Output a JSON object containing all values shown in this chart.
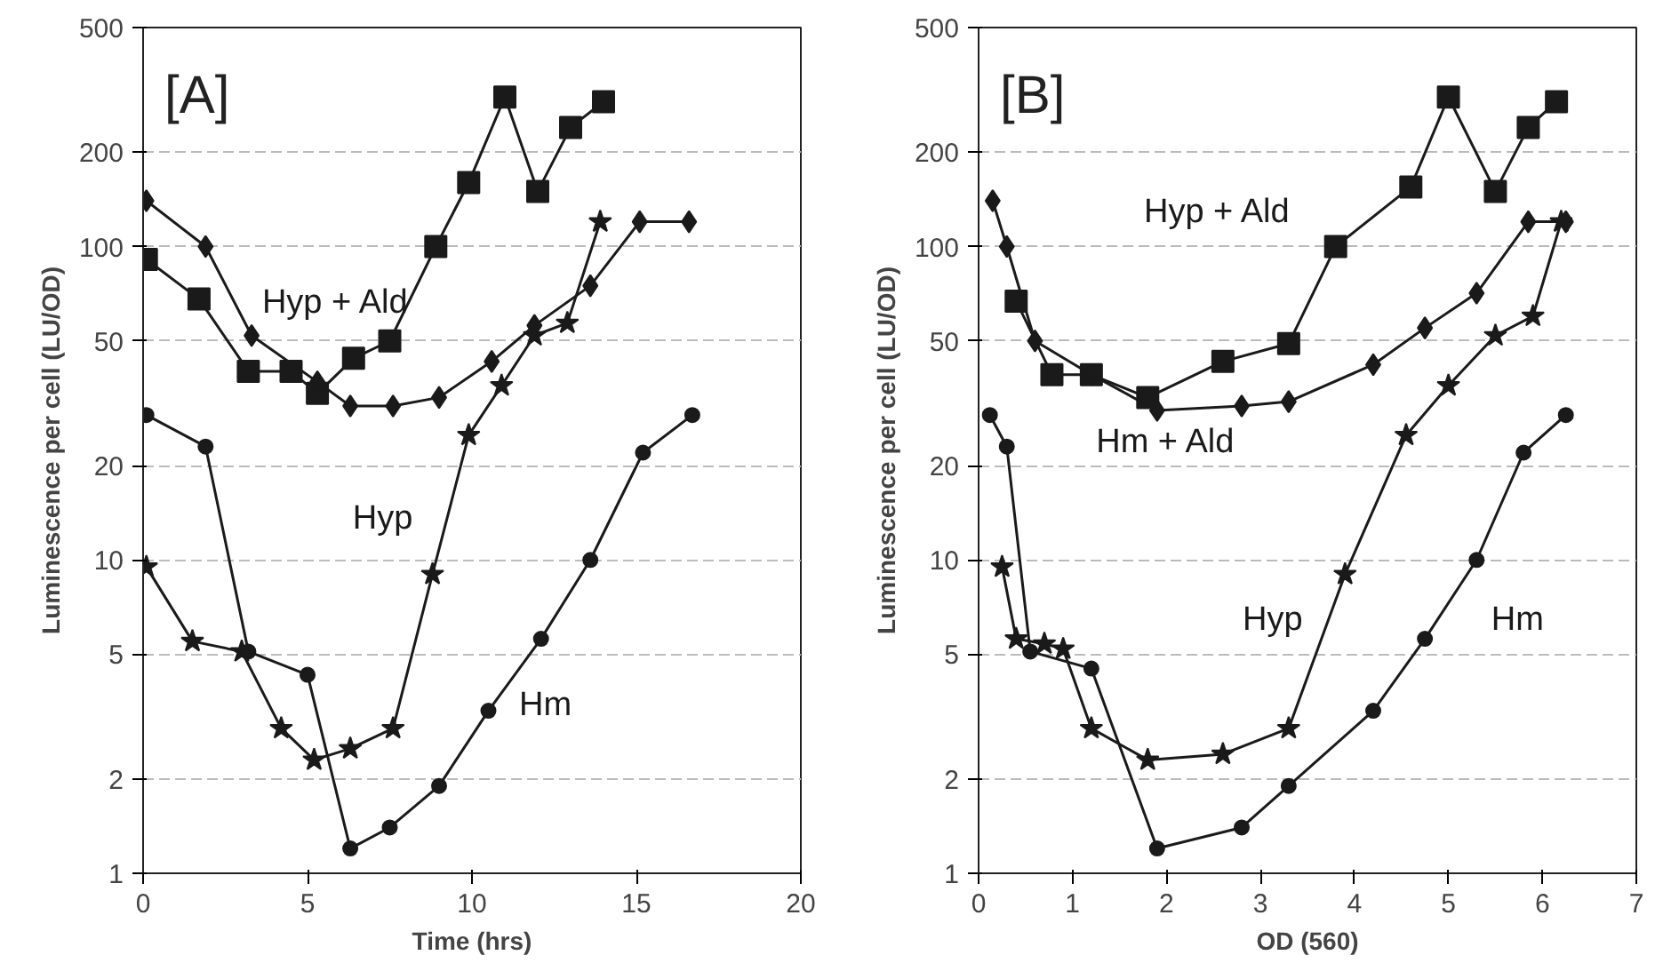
{
  "chart_data": [
    {
      "type": "line",
      "xlabel": "Time (hrs)",
      "ylabel": "Luminescence per cell (LU/OD)",
      "log": "y",
      "xlim": [
        0,
        20
      ],
      "ylim": [
        1,
        500
      ],
      "xticks": [
        0,
        5,
        10,
        15,
        20
      ],
      "yticks": [
        1,
        2,
        5,
        10,
        20,
        50,
        100,
        200,
        500
      ],
      "grid": "y",
      "line_style": "solid",
      "annotations": [
        "[A]"
      ],
      "series": [
        {
          "name": "Hyp + Ald",
          "color": "#1a1a1a",
          "marker": "square",
          "x": [
            0.1,
            1.7,
            3.2,
            4.5,
            5.3,
            6.4,
            7.5,
            8.9,
            9.9,
            11,
            12,
            13,
            14
          ],
          "values": [
            91,
            68,
            40,
            40,
            34,
            44,
            50,
            100,
            160,
            300,
            150,
            240,
            290
          ]
        },
        {
          "color": "#1a1a1a",
          "marker": "diamond",
          "x": [
            0.1,
            1.9,
            3.3,
            5.3,
            6.3,
            7.6,
            9.0,
            10.6,
            11.9,
            13.6,
            15.1,
            16.6
          ],
          "values": [
            140,
            100,
            52,
            37,
            31,
            31,
            33,
            43,
            56,
            75,
            120,
            120
          ]
        },
        {
          "name": "Hyp",
          "color": "#1a1a1a",
          "marker": "star",
          "x": [
            0.1,
            1.5,
            3.0,
            4.2,
            5.2,
            6.3,
            7.6,
            8.8,
            9.9,
            10.9,
            11.9,
            12.9,
            13.9
          ],
          "values": [
            9.5,
            5.5,
            5.1,
            2.9,
            2.3,
            2.5,
            2.9,
            9,
            25,
            36,
            52,
            57,
            120
          ]
        },
        {
          "name": "Hm",
          "color": "#1a1a1a",
          "marker": "circle",
          "x": [
            0.1,
            1.9,
            3.2,
            5.0,
            6.3,
            7.5,
            9.0,
            10.5,
            12.1,
            13.6,
            15.2,
            16.7
          ],
          "values": [
            29,
            23,
            5.1,
            4.3,
            1.2,
            1.4,
            1.9,
            3.3,
            5.6,
            10,
            22,
            29
          ]
        }
      ]
    },
    {
      "type": "line",
      "xlabel": "OD (560)",
      "ylabel": "Luminescence per cell (LU/OD)",
      "log": "y",
      "xlim": [
        0,
        7
      ],
      "ylim": [
        1,
        500
      ],
      "xticks": [
        0,
        1,
        2,
        3,
        4,
        5,
        6,
        7
      ],
      "yticks": [
        1,
        2,
        5,
        10,
        20,
        50,
        100,
        200,
        500
      ],
      "grid": "y",
      "line_style": "solid",
      "annotations": [
        "[B]"
      ],
      "series": [
        {
          "name": "Hyp + Ald",
          "color": "#1a1a1a",
          "marker": "square",
          "x": [
            0.4,
            0.78,
            1.2,
            1.8,
            2.6,
            3.3,
            3.8,
            4.6,
            5.0,
            5.5,
            5.85,
            6.15
          ],
          "values": [
            67,
            39,
            39,
            33,
            43,
            49,
            100,
            155,
            300,
            150,
            240,
            290
          ]
        },
        {
          "name": "Hm + Ald",
          "color": "#1a1a1a",
          "marker": "diamond",
          "x": [
            0.15,
            0.3,
            0.6,
            1.2,
            1.9,
            2.8,
            3.3,
            4.2,
            4.75,
            5.3,
            5.85,
            6.25
          ],
          "values": [
            140,
            100,
            50,
            39,
            30,
            31,
            32,
            42,
            55,
            71,
            120,
            120
          ]
        },
        {
          "name": "Hyp",
          "color": "#1a1a1a",
          "marker": "star",
          "x": [
            0.25,
            0.4,
            0.7,
            0.9,
            1.2,
            1.8,
            2.6,
            3.3,
            3.9,
            4.55,
            5.0,
            5.5,
            5.9,
            6.2
          ],
          "values": [
            9.5,
            5.6,
            5.4,
            5.2,
            2.9,
            2.3,
            2.4,
            2.9,
            9,
            25,
            36,
            52,
            60,
            120
          ]
        },
        {
          "name": "Hm",
          "color": "#1a1a1a",
          "marker": "circle",
          "x": [
            0.12,
            0.3,
            0.55,
            1.2,
            1.9,
            2.8,
            3.3,
            4.2,
            4.75,
            5.3,
            5.8,
            6.25
          ],
          "values": [
            29,
            23,
            5.1,
            4.5,
            1.2,
            1.4,
            1.9,
            3.3,
            5.6,
            10,
            22,
            29
          ]
        }
      ]
    }
  ]
}
